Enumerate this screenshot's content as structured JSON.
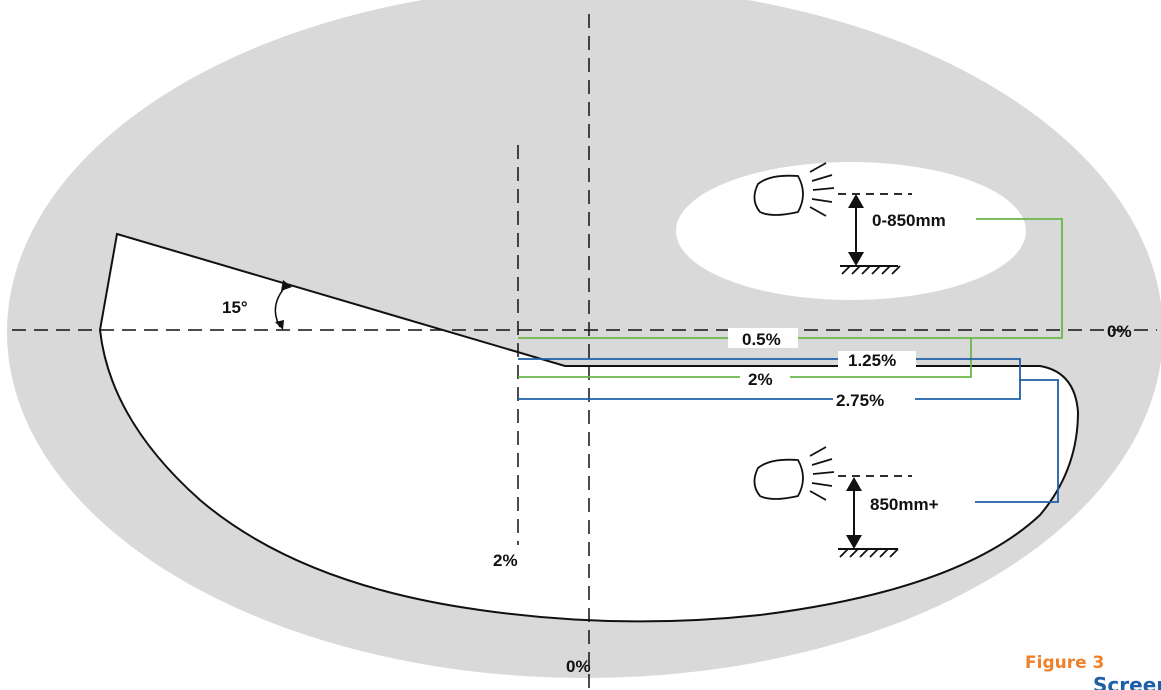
{
  "diagram": {
    "angle_label": "15°",
    "horizontal_axis_label": "0%",
    "vertical_axis_label": "0%",
    "offset_axis_label": "2%",
    "aim_labels": {
      "green_top": "0.5%",
      "blue_top": "1.25%",
      "green_bottom": "2%",
      "blue_bottom": "2.75%"
    },
    "height_ranges": {
      "low": "0-850mm",
      "high": "850mm+"
    },
    "figure_caption": {
      "number": "Figure 3",
      "title_partial": "Screen"
    },
    "colors": {
      "background_ellipse": "#d9d9d9",
      "green_lines": "#6ab64a",
      "blue_lines": "#1f5fa8",
      "caption_number": "#f0812a",
      "caption_title": "#1f5fa8",
      "outline": "#111111"
    }
  }
}
